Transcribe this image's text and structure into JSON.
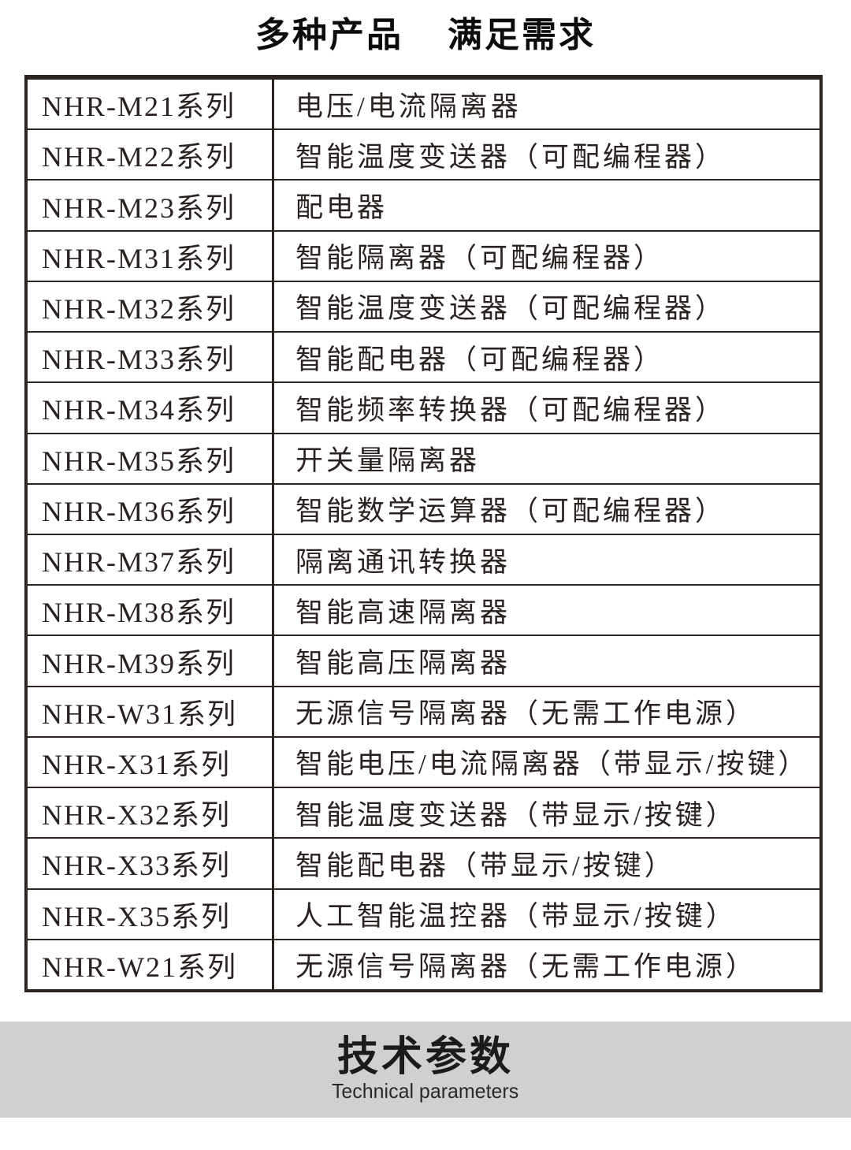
{
  "title": {
    "part1": "多种产品",
    "part2": "满足需求"
  },
  "table": {
    "rows": [
      {
        "series": "NHR-M21系列",
        "description": "电压/电流隔离器"
      },
      {
        "series": "NHR-M22系列",
        "description": "智能温度变送器（可配编程器）"
      },
      {
        "series": "NHR-M23系列",
        "description": "配电器"
      },
      {
        "series": "NHR-M31系列",
        "description": "智能隔离器（可配编程器）"
      },
      {
        "series": "NHR-M32系列",
        "description": "智能温度变送器（可配编程器）"
      },
      {
        "series": "NHR-M33系列",
        "description": "智能配电器（可配编程器）"
      },
      {
        "series": "NHR-M34系列",
        "description": "智能频率转换器（可配编程器）"
      },
      {
        "series": "NHR-M35系列",
        "description": "开关量隔离器"
      },
      {
        "series": "NHR-M36系列",
        "description": "智能数学运算器（可配编程器）"
      },
      {
        "series": "NHR-M37系列",
        "description": "隔离通讯转换器"
      },
      {
        "series": "NHR-M38系列",
        "description": "智能高速隔离器"
      },
      {
        "series": "NHR-M39系列",
        "description": "智能高压隔离器"
      },
      {
        "series": "NHR-W31系列",
        "description": "无源信号隔离器（无需工作电源）"
      },
      {
        "series": "NHR-X31系列",
        "description": "智能电压/电流隔离器（带显示/按键）"
      },
      {
        "series": "NHR-X32系列",
        "description": "智能温度变送器（带显示/按键）"
      },
      {
        "series": "NHR-X33系列",
        "description": "智能配电器（带显示/按键）"
      },
      {
        "series": "NHR-X35系列",
        "description": "人工智能温控器（带显示/按键）"
      },
      {
        "series": "NHR-W21系列",
        "description": "无源信号隔离器（无需工作电源）"
      }
    ]
  },
  "footer": {
    "heading": "技术参数",
    "subheading": "Technical parameters"
  },
  "colors": {
    "band_background": "#d1d0d0",
    "table_border": "#2e2523",
    "text": "#2a2220",
    "title_text": "#0d0c0c"
  }
}
